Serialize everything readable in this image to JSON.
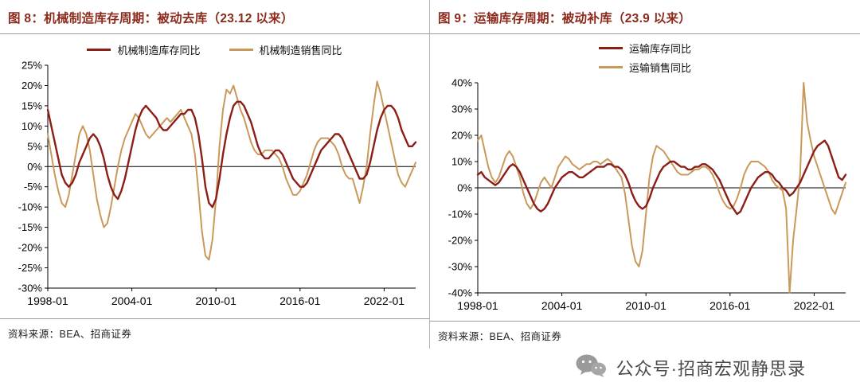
{
  "theme": {
    "title_color": "#8C2A1B",
    "inventory_line_color": "#8B1E17",
    "sales_line_color": "#C9995C",
    "divider_color": "#b3b3b3",
    "watermark_color": "#4a4a4a"
  },
  "watermark": {
    "icon": "wechat-icon",
    "text": "公众号·招商宏观静思录"
  },
  "charts": [
    {
      "title": "图 8：机械制造库存周期：被动去库（23.12 以来）",
      "source": "资料来源：BEA、招商证券",
      "chart_data": {
        "type": "line",
        "frequency": "quarterly",
        "x_start": "1998-01",
        "x_end": "2024-04",
        "x_ticks": [
          "1998-01",
          "2004-01",
          "2010-01",
          "2016-01",
          "2022-01"
        ],
        "ylim": [
          -30,
          25
        ],
        "y_step": 5,
        "y_unit": "%",
        "grid": false,
        "legend_position": "top",
        "series": [
          {
            "name": "机械制造库存同比",
            "color": "#8B1E17",
            "values": [
              14,
              10,
              6,
              2,
              -2,
              -4,
              -5,
              -4,
              -2,
              1,
              3,
              5,
              7,
              8,
              7,
              5,
              2,
              -2,
              -5,
              -7,
              -8,
              -6,
              -3,
              1,
              5,
              9,
              12,
              14,
              15,
              14,
              13,
              12,
              10,
              9,
              9,
              10,
              11,
              12,
              13,
              13,
              14,
              14,
              12,
              8,
              2,
              -5,
              -9,
              -10,
              -8,
              -3,
              3,
              8,
              12,
              15,
              16,
              16,
              15,
              13,
              11,
              8,
              5,
              3,
              2,
              2,
              3,
              4,
              4,
              3,
              1,
              -1,
              -3,
              -4,
              -5,
              -5,
              -4,
              -2,
              0,
              2,
              4,
              5,
              6,
              7,
              8,
              8,
              7,
              5,
              3,
              1,
              -1,
              -3,
              -3,
              -2,
              1,
              5,
              9,
              12,
              14,
              15,
              15,
              14,
              12,
              9,
              7,
              5,
              5,
              6
            ]
          },
          {
            "name": "机械制造销售同比",
            "color": "#C9995C",
            "values": [
              8,
              3,
              -2,
              -6,
              -9,
              -10,
              -7,
              -2,
              3,
              8,
              10,
              8,
              4,
              -2,
              -8,
              -12,
              -15,
              -14,
              -10,
              -5,
              0,
              4,
              7,
              9,
              11,
              13,
              12,
              10,
              8,
              7,
              8,
              9,
              10,
              11,
              12,
              11,
              12,
              13,
              14,
              12,
              10,
              8,
              3,
              -6,
              -16,
              -22,
              -23,
              -18,
              -8,
              5,
              14,
              19,
              18,
              20,
              17,
              14,
              12,
              9,
              6,
              4,
              3,
              3,
              4,
              4,
              4,
              3,
              2,
              0,
              -3,
              -5,
              -7,
              -7,
              -6,
              -4,
              -2,
              1,
              4,
              6,
              7,
              7,
              7,
              6,
              5,
              3,
              0,
              -2,
              -3,
              -3,
              -6,
              -9,
              -5,
              0,
              8,
              15,
              21,
              18,
              14,
              10,
              6,
              2,
              -2,
              -4,
              -5,
              -3,
              -1,
              1
            ]
          }
        ]
      }
    },
    {
      "title": "图 9：运输库存周期：被动补库（23.9 以来）",
      "source": "资料来源：BEA、招商证券",
      "chart_data": {
        "type": "line",
        "frequency": "quarterly",
        "x_start": "1998-01",
        "x_end": "2024-04",
        "x_ticks": [
          "1998-01",
          "2004-01",
          "2010-01",
          "2016-01",
          "2022-01"
        ],
        "ylim": [
          -40,
          40
        ],
        "y_step": 10,
        "y_unit": "%",
        "grid": false,
        "legend_position": "top",
        "series": [
          {
            "name": "运输库存同比",
            "color": "#8B1E17",
            "values": [
              5,
              6,
              4,
              3,
              2,
              1,
              2,
              4,
              6,
              8,
              9,
              8,
              6,
              3,
              0,
              -3,
              -6,
              -8,
              -9,
              -8,
              -6,
              -3,
              0,
              2,
              4,
              5,
              6,
              6,
              5,
              4,
              4,
              5,
              6,
              7,
              8,
              8,
              8,
              9,
              9,
              8,
              8,
              7,
              5,
              2,
              -2,
              -5,
              -7,
              -8,
              -7,
              -4,
              0,
              3,
              6,
              8,
              9,
              10,
              10,
              9,
              8,
              8,
              7,
              7,
              8,
              8,
              9,
              9,
              8,
              7,
              5,
              3,
              0,
              -3,
              -6,
              -8,
              -10,
              -9,
              -6,
              -3,
              0,
              2,
              4,
              5,
              6,
              6,
              5,
              3,
              2,
              0,
              -1,
              -3,
              -2,
              0,
              2,
              5,
              8,
              11,
              14,
              16,
              17,
              18,
              16,
              12,
              8,
              4,
              3,
              5
            ]
          },
          {
            "name": "运输销售同比",
            "color": "#C9995C",
            "values": [
              18,
              20,
              14,
              8,
              4,
              2,
              4,
              8,
              12,
              14,
              12,
              8,
              4,
              -2,
              -6,
              -8,
              -6,
              -2,
              2,
              4,
              2,
              0,
              4,
              8,
              10,
              12,
              11,
              9,
              8,
              7,
              8,
              9,
              9,
              10,
              10,
              9,
              10,
              11,
              10,
              8,
              6,
              4,
              -2,
              -12,
              -22,
              -28,
              -30,
              -24,
              -10,
              4,
              12,
              16,
              15,
              14,
              12,
              10,
              8,
              6,
              5,
              5,
              5,
              6,
              7,
              7,
              8,
              8,
              7,
              5,
              2,
              -2,
              -5,
              -7,
              -8,
              -7,
              -4,
              0,
              5,
              8,
              10,
              10,
              10,
              9,
              8,
              6,
              3,
              1,
              0,
              -1,
              -8,
              -40,
              -20,
              -8,
              5,
              40,
              25,
              18,
              12,
              8,
              4,
              0,
              -4,
              -8,
              -10,
              -6,
              -2,
              2
            ]
          }
        ]
      }
    }
  ]
}
